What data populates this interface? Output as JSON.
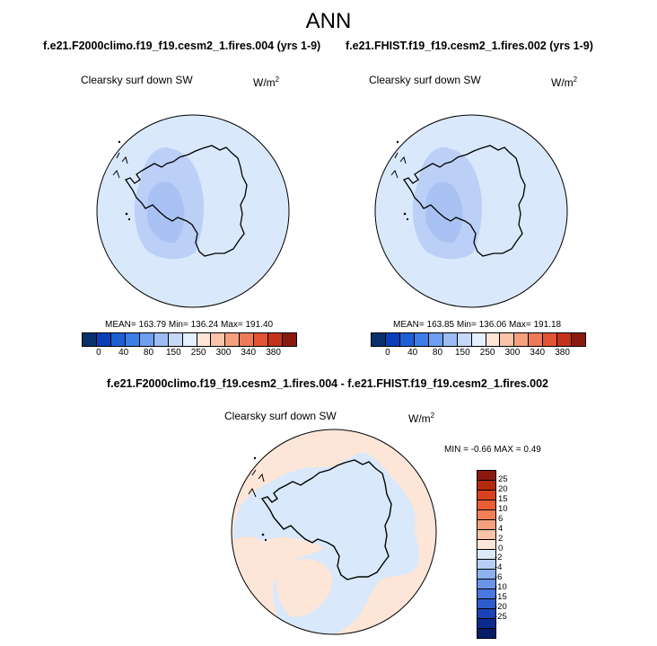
{
  "title": "ANN",
  "panel_left": {
    "case": "f.e21.F2000climo.f19_f19.cesm2_1.fires.004 (yrs 1-9)",
    "variable": "Clearsky surf down SW",
    "units_base": "W/m",
    "units_exp": "2",
    "stats": "MEAN= 163.79  Min= 136.24  Max= 191.40"
  },
  "panel_right": {
    "case": "f.e21.FHIST.f19_f19.cesm2_1.fires.002 (yrs 1-9)",
    "variable": "Clearsky surf down SW",
    "units_base": "W/m",
    "units_exp": "2",
    "stats": "MEAN= 163.85  Min= 136.06  Max= 191.18"
  },
  "panel_diff": {
    "case": "f.e21.F2000climo.f19_f19.cesm2_1.fires.004 - f.e21.FHIST.f19_f19.cesm2_1.fires.002",
    "variable": "Clearsky surf down SW",
    "units_base": "W/m",
    "units_exp": "2",
    "stats": "MIN =  -0.66 MAX =   0.49"
  },
  "colorbar_main": {
    "colors": [
      "#08306b",
      "#0a3fb8",
      "#1f5fd6",
      "#3c7ee8",
      "#6e9ff0",
      "#9dbcf3",
      "#c6d8f7",
      "#e6efff",
      "#fde6d8",
      "#f9c4aa",
      "#f4a07e",
      "#ee7a57",
      "#e25534",
      "#c5321c",
      "#8b1a0e"
    ],
    "labels": [
      "0",
      "40",
      "80",
      "150",
      "250",
      "300",
      "340",
      "380"
    ]
  },
  "colorbar_diff": {
    "colors": [
      "#8b1a0e",
      "#b5290f",
      "#d8411f",
      "#ea5d35",
      "#f07e57",
      "#f4a07e",
      "#f8c3a6",
      "#fde6d8",
      "#dce9fb",
      "#b7cff5",
      "#8eb1ef",
      "#6a94e8",
      "#4a78df",
      "#2f5ccf",
      "#1a42b2",
      "#0c2b8e",
      "#061c66"
    ],
    "labels": [
      "25",
      "20",
      "15",
      "10",
      "6",
      "4",
      "2",
      "0",
      "-2",
      "-4",
      "-6",
      "-10",
      "-15",
      "-20",
      "-25"
    ]
  },
  "map_colors": {
    "ocean": "#d9e8fb",
    "inner": "#bccff6",
    "inner2": "#a9c2f3",
    "diff_pos": "#fde6d8",
    "diff_neg": "#d9e8fb"
  }
}
